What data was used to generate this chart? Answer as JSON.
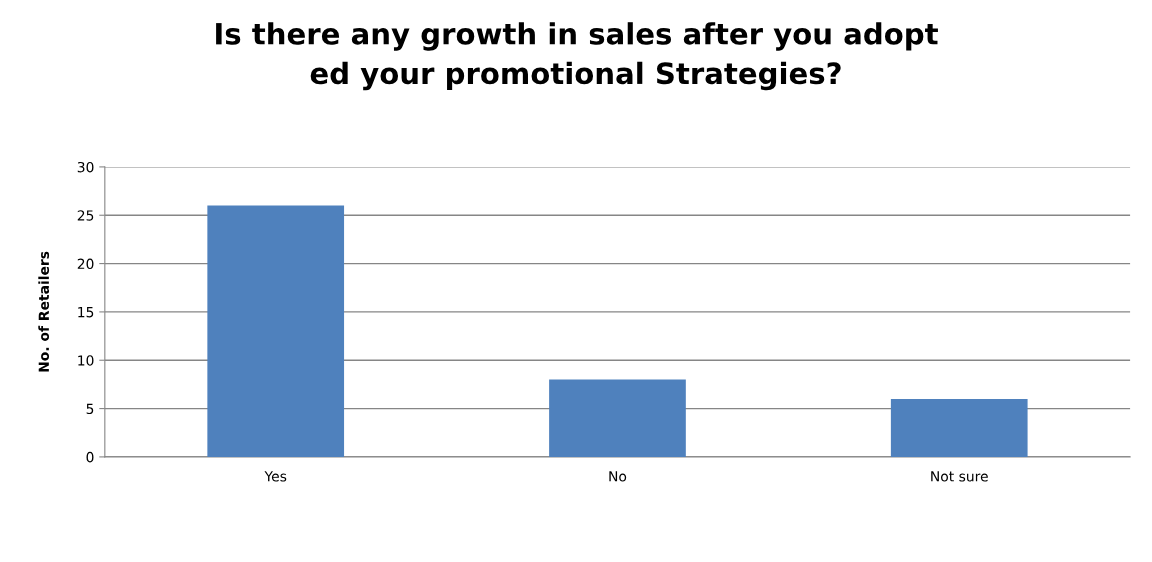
{
  "chart_data": {
    "type": "bar",
    "title": "Is there any growth in sales after you adopt\ned your promotional Strategies?",
    "ylabel": "No. of Retailers",
    "categories": [
      "Yes",
      "No",
      "Not sure"
    ],
    "values": [
      26,
      8,
      6
    ],
    "color": "#4f81bd",
    "ylim": [
      0,
      30
    ],
    "yticks": [
      0,
      5,
      10,
      15,
      20,
      25,
      30
    ],
    "grid": "y",
    "legend": false
  }
}
